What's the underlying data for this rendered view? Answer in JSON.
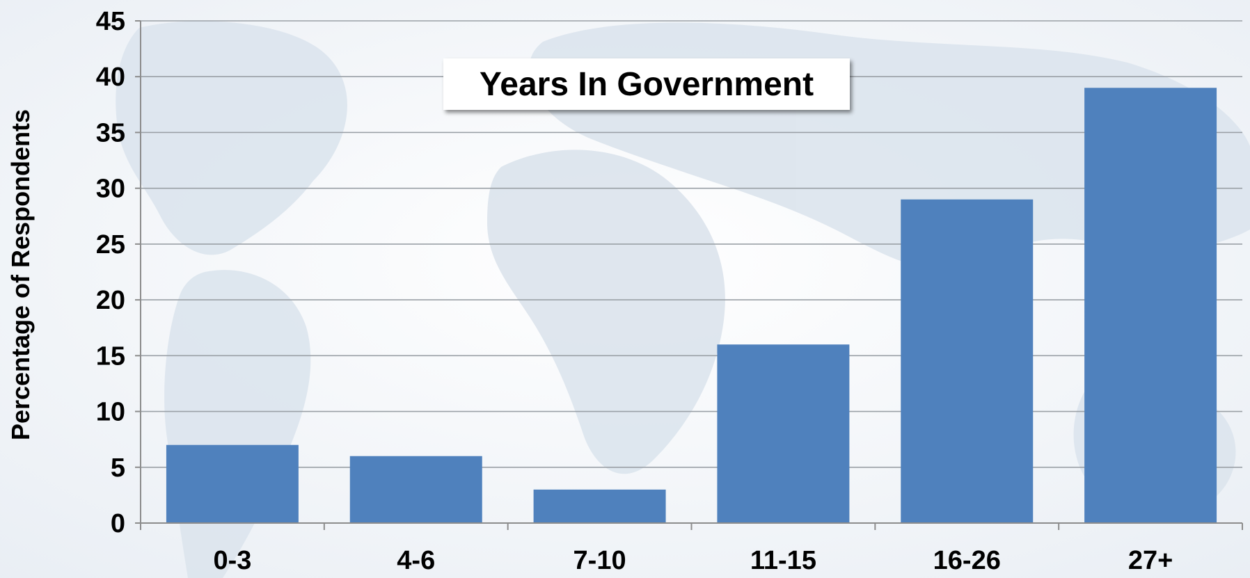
{
  "chart_data": {
    "type": "bar",
    "title": "Years In Government",
    "xlabel": "",
    "ylabel": "Percentage of Respondents",
    "categories": [
      "0-3",
      "4-6",
      "7-10",
      "11-15",
      "16-26",
      "27+"
    ],
    "values": [
      7,
      6,
      3,
      16,
      29,
      39
    ],
    "ylim": [
      0,
      45
    ],
    "yticks": [
      0,
      5,
      10,
      15,
      20,
      25,
      30,
      35,
      40,
      45
    ],
    "grid": true,
    "legend": "none",
    "colors": {
      "bar": "#4f81bd",
      "background": "#f1f4f8",
      "map": "#dfe6ee",
      "grid": "#9aa0a6",
      "axis": "#8c8c8c"
    }
  }
}
